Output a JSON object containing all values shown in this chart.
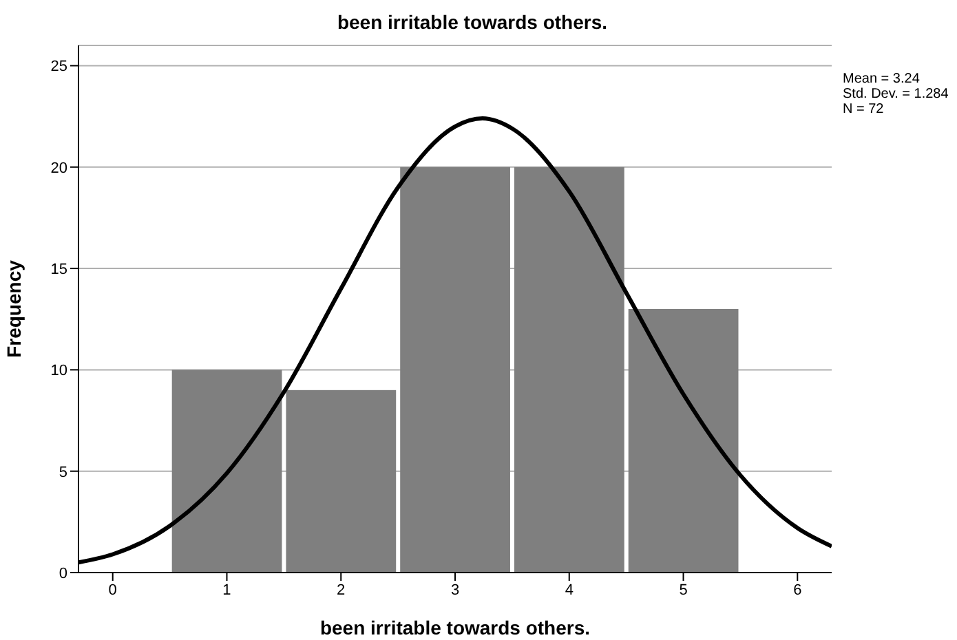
{
  "chart_data": {
    "type": "histogram",
    "title": "been irritable towards others.",
    "xlabel": "been irritable towards others.",
    "ylabel": "Frequency",
    "annotations": [
      "Mean = 3.24",
      "Std. Dev. = 1.284",
      "N = 72"
    ],
    "series": [
      {
        "bins": [
          0.5,
          1.5,
          2.5,
          3.5,
          4.5,
          5.5
        ],
        "values": [
          10,
          9,
          20,
          20,
          13
        ],
        "color": "#7f7f7f"
      },
      {
        "type": "line",
        "color": "#000000",
        "x": [
          -0.3,
          0,
          0.5,
          1,
          1.5,
          2,
          2.5,
          3,
          3.24,
          3.5,
          4,
          4.5,
          5,
          5.5,
          6,
          6.3
        ],
        "values": [
          0.5,
          0.9,
          2.3,
          4.9,
          8.9,
          14.0,
          19.0,
          22.0,
          22.4,
          21.9,
          18.8,
          13.8,
          8.8,
          4.8,
          2.2,
          1.3
        ]
      }
    ],
    "xlim": [
      -0.3,
      6.3
    ],
    "xticks": [
      0,
      1,
      2,
      3,
      4,
      5,
      6
    ],
    "ylim": [
      0,
      26
    ],
    "yticks": [
      0,
      5,
      10,
      15,
      20,
      25
    ],
    "grid": "y",
    "legend": false
  }
}
